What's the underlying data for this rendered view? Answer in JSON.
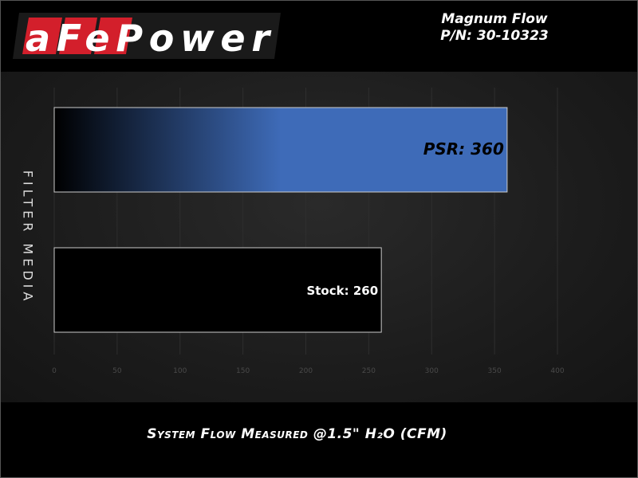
{
  "brand": {
    "logo_text": "aFePower"
  },
  "product": {
    "name": "Magnum Flow",
    "part_number": "P/N: 30-10323"
  },
  "colors": {
    "logo_red": "#d31f2b",
    "psr_bar": "#3e6bb8",
    "stock_bar": "#000000"
  },
  "chart_data": {
    "type": "bar",
    "orientation": "horizontal",
    "categories": [
      "PSR",
      "Stock"
    ],
    "values": [
      360,
      260
    ],
    "data_labels": [
      "PSR: 360",
      "Stock: 260"
    ],
    "xlabel": "System Flow Measured @1.5\" H₂O (CFM)",
    "ylabel": "FILTER MEDIA",
    "xlim": [
      0,
      400
    ],
    "xticks": [
      "0",
      "50",
      "100",
      "150",
      "200",
      "250",
      "300",
      "350",
      "400"
    ],
    "grid": true,
    "legend": "none"
  }
}
